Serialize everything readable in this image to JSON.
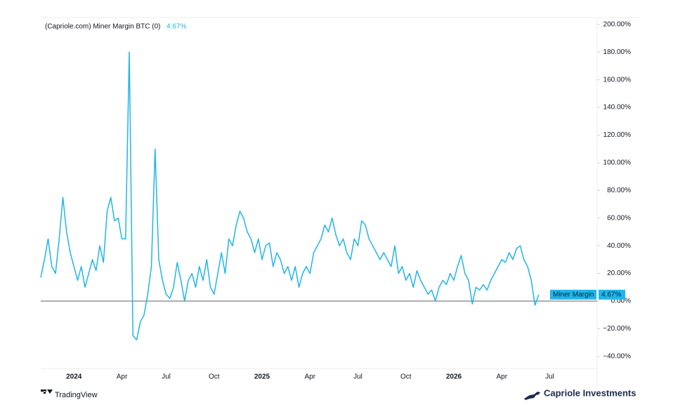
{
  "chart_data": {
    "type": "line",
    "title": "(Capriole.com) Miner Margin BTC (0)",
    "last_label": "4.67%",
    "categories": [
      null,
      null,
      null,
      null,
      null,
      null,
      null,
      null,
      null,
      "2024",
      null,
      null,
      null,
      null,
      null,
      null,
      null,
      null,
      null,
      null,
      null,
      null,
      "Apr",
      null,
      null,
      null,
      null,
      null,
      null,
      null,
      null,
      null,
      null,
      null,
      "Jul",
      null,
      null,
      null,
      null,
      null,
      null,
      null,
      null,
      null,
      null,
      null,
      null,
      "Oct",
      null,
      null,
      null,
      null,
      null,
      null,
      null,
      null,
      null,
      null,
      null,
      null,
      "2025",
      null,
      null,
      null,
      null,
      null,
      null,
      null,
      null,
      null,
      null,
      null,
      null,
      "Apr",
      null,
      null,
      null,
      null,
      null,
      null,
      null,
      null,
      null,
      null,
      null,
      null,
      "Jul",
      null,
      null,
      null,
      null,
      null,
      null,
      null,
      null,
      null,
      null,
      null,
      null,
      "Oct",
      null,
      null,
      null,
      null,
      null,
      null,
      null,
      null,
      null,
      null,
      null,
      null,
      "2026",
      null,
      null,
      null,
      null,
      null,
      null,
      null,
      null,
      null,
      null,
      null,
      null,
      "Apr",
      null,
      null,
      null,
      null,
      null,
      null,
      null,
      null,
      null,
      null,
      null,
      null,
      "Jul",
      null,
      null,
      null,
      null,
      null,
      null,
      null,
      null,
      null,
      null,
      null,
      null
    ],
    "series": [
      {
        "name": "Miner Margin",
        "color": "#1fb6ea",
        "values": [
          17,
          30,
          45,
          25,
          20,
          45,
          75,
          50,
          35,
          25,
          15,
          25,
          10,
          20,
          30,
          22,
          40,
          28,
          65,
          75,
          58,
          60,
          45,
          45,
          180,
          -25,
          -28,
          -15,
          -10,
          5,
          25,
          110,
          30,
          15,
          5,
          2,
          10,
          28,
          15,
          0,
          15,
          20,
          10,
          25,
          15,
          30,
          10,
          5,
          20,
          35,
          20,
          45,
          40,
          55,
          65,
          60,
          50,
          45,
          35,
          45,
          30,
          40,
          42,
          25,
          35,
          30,
          20,
          25,
          15,
          25,
          10,
          20,
          25,
          20,
          35,
          40,
          45,
          55,
          50,
          60,
          48,
          40,
          45,
          35,
          30,
          45,
          40,
          58,
          55,
          45,
          40,
          35,
          30,
          35,
          30,
          25,
          40,
          20,
          25,
          15,
          20,
          10,
          22,
          15,
          10,
          5,
          8,
          0,
          10,
          15,
          12,
          20,
          15,
          25,
          33,
          20,
          15,
          -2,
          10,
          8,
          12,
          8,
          15,
          20,
          25,
          30,
          28,
          35,
          30,
          38,
          40,
          30,
          25,
          15,
          -3,
          4.67,
          null,
          null,
          null,
          null,
          null,
          null,
          null,
          null,
          null,
          null,
          null,
          null,
          null,
          null,
          null
        ]
      }
    ],
    "ylim": [
      -48.7,
      205
    ],
    "yticks": [
      {
        "value": 200,
        "label": "200.00%"
      },
      {
        "value": 180,
        "label": "180.00%"
      },
      {
        "value": 160,
        "label": "160.00%"
      },
      {
        "value": 140,
        "label": "140.00%"
      },
      {
        "value": 120,
        "label": "120.00%"
      },
      {
        "value": 100,
        "label": "100.00%"
      },
      {
        "value": 80,
        "label": "80.00%"
      },
      {
        "value": 60,
        "label": "60.00%"
      },
      {
        "value": 40,
        "label": "40.00%"
      },
      {
        "value": 20,
        "label": "20.00%"
      },
      {
        "value": 0,
        "label": "0.00%"
      },
      {
        "value": -20,
        "label": "−20.00%"
      },
      {
        "value": -40,
        "label": "−40.00%"
      }
    ],
    "zero_line": true,
    "watermark": "TradingView",
    "brand": "Capriole Investments"
  }
}
